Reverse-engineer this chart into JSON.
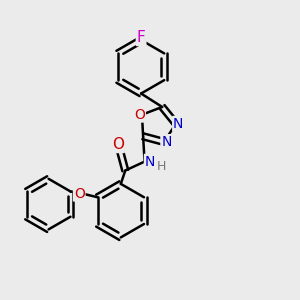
{
  "background_color": "#ebebeb",
  "bond_color": "#000000",
  "bond_width": 1.8,
  "atom_colors": {
    "F": "#cc00cc",
    "O": "#cc0000",
    "N": "#0000cc",
    "H": "#777777",
    "C": "#000000"
  },
  "font_size_atom": 10,
  "fig_size": [
    3.0,
    3.0
  ],
  "dpi": 100
}
